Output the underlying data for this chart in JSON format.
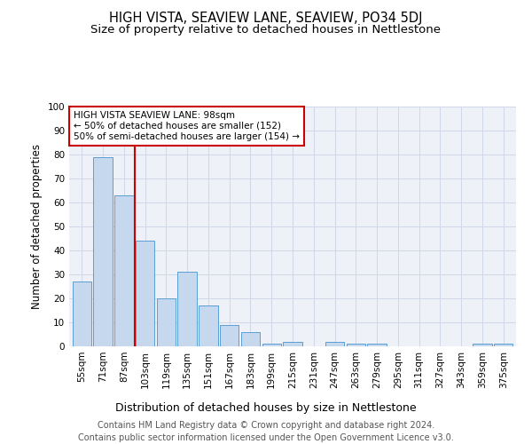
{
  "title": "HIGH VISTA, SEAVIEW LANE, SEAVIEW, PO34 5DJ",
  "subtitle": "Size of property relative to detached houses in Nettlestone",
  "xlabel": "Distribution of detached houses by size in Nettlestone",
  "ylabel": "Number of detached properties",
  "categories": [
    "55sqm",
    "71sqm",
    "87sqm",
    "103sqm",
    "119sqm",
    "135sqm",
    "151sqm",
    "167sqm",
    "183sqm",
    "199sqm",
    "215sqm",
    "231sqm",
    "247sqm",
    "263sqm",
    "279sqm",
    "295sqm",
    "311sqm",
    "327sqm",
    "343sqm",
    "359sqm",
    "375sqm"
  ],
  "values": [
    27,
    79,
    63,
    44,
    20,
    31,
    17,
    9,
    6,
    1,
    2,
    0,
    2,
    1,
    1,
    0,
    0,
    0,
    0,
    1,
    1
  ],
  "bar_color": "#c5d8ed",
  "bar_edge_color": "#5a9fd4",
  "red_line_x": 2.5,
  "annotation_text": "HIGH VISTA SEAVIEW LANE: 98sqm\n← 50% of detached houses are smaller (152)\n50% of semi-detached houses are larger (154) →",
  "annotation_box_color": "#ffffff",
  "annotation_box_edge": "#cc0000",
  "red_line_color": "#cc0000",
  "ylim": [
    0,
    100
  ],
  "yticks": [
    0,
    10,
    20,
    30,
    40,
    50,
    60,
    70,
    80,
    90,
    100
  ],
  "footer": "Contains HM Land Registry data © Crown copyright and database right 2024.\nContains public sector information licensed under the Open Government Licence v3.0.",
  "grid_color": "#d0d8e8",
  "background_color": "#eef2f8",
  "title_fontsize": 10.5,
  "subtitle_fontsize": 9.5,
  "xlabel_fontsize": 9,
  "ylabel_fontsize": 8.5,
  "tick_fontsize": 7.5,
  "footer_fontsize": 7,
  "annotation_fontsize": 7.5
}
